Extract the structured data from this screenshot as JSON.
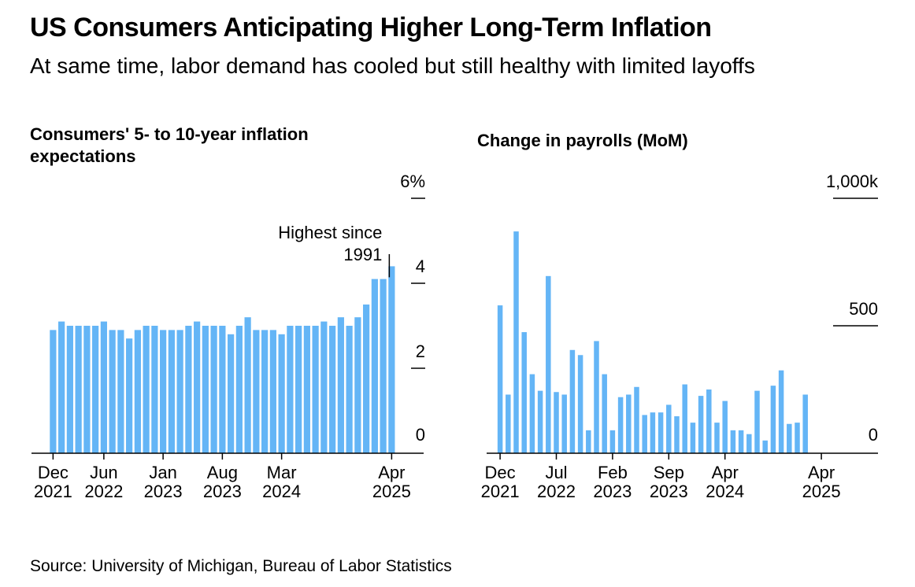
{
  "title": "US Consumers Anticipating Higher Long-Term Inflation",
  "subtitle": "At same time, labor demand has cooled but still healthy with limited layoffs",
  "source": "Source: University of Michigan, Bureau of Labor Statistics",
  "colors": {
    "bar": "#64b5f6",
    "axis": "#000000"
  },
  "chart_data": [
    {
      "type": "bar",
      "title": "Consumers' 5- to 10-year inflation expectations",
      "title_lines": [
        "Consumers' 5- to 10-year inflation",
        "expectations"
      ],
      "y_ticks": [
        "6%",
        "4",
        "2",
        "0"
      ],
      "y_tick_values": [
        6,
        4,
        2,
        0
      ],
      "ylim": [
        0,
        6
      ],
      "x_ticks": [
        {
          "index": 0,
          "month": "Dec",
          "year": "2021"
        },
        {
          "index": 6,
          "month": "Jun",
          "year": "2022"
        },
        {
          "index": 13,
          "month": "Jan",
          "year": "2023"
        },
        {
          "index": 20,
          "month": "Aug",
          "year": "2023"
        },
        {
          "index": 27,
          "month": "Mar",
          "year": "2024"
        },
        {
          "index": 40,
          "month": "Apr",
          "year": "2025"
        }
      ],
      "annotation": {
        "lines": [
          "Highest since",
          "1991"
        ],
        "index": 40
      },
      "x": [
        "Dec 2021",
        "Jan 2022",
        "Feb 2022",
        "Mar 2022",
        "Apr 2022",
        "May 2022",
        "Jun 2022",
        "Jul 2022",
        "Aug 2022",
        "Sep 2022",
        "Oct 2022",
        "Nov 2022",
        "Dec 2022",
        "Jan 2023",
        "Feb 2023",
        "Mar 2023",
        "Apr 2023",
        "May 2023",
        "Jun 2023",
        "Jul 2023",
        "Aug 2023",
        "Sep 2023",
        "Oct 2023",
        "Nov 2023",
        "Dec 2023",
        "Jan 2024",
        "Feb 2024",
        "Mar 2024",
        "Apr 2024",
        "May 2024",
        "Jun 2024",
        "Jul 2024",
        "Aug 2024",
        "Sep 2024",
        "Oct 2024",
        "Nov 2024",
        "Dec 2024",
        "Jan 2025",
        "Feb 2025",
        "Mar 2025",
        "Apr 2025"
      ],
      "values": [
        2.9,
        3.1,
        3.0,
        3.0,
        3.0,
        3.0,
        3.1,
        2.9,
        2.9,
        2.7,
        2.9,
        3.0,
        3.0,
        2.9,
        2.9,
        2.9,
        3.0,
        3.1,
        3.0,
        3.0,
        3.0,
        2.8,
        3.0,
        3.2,
        2.9,
        2.9,
        2.9,
        2.8,
        3.0,
        3.0,
        3.0,
        3.0,
        3.1,
        3.0,
        3.2,
        3.0,
        3.2,
        3.5,
        4.1,
        4.1,
        4.4
      ]
    },
    {
      "type": "bar",
      "title": "Change in payrolls (MoM)",
      "y_ticks": [
        "1,000k",
        "500",
        "0"
      ],
      "y_tick_values": [
        1000,
        500,
        0
      ],
      "ylim": [
        0,
        1000
      ],
      "x_ticks": [
        {
          "index": 0,
          "month": "Dec",
          "year": "2021"
        },
        {
          "index": 7,
          "month": "Jul",
          "year": "2022"
        },
        {
          "index": 14,
          "month": "Feb",
          "year": "2023"
        },
        {
          "index": 21,
          "month": "Sep",
          "year": "2023"
        },
        {
          "index": 28,
          "month": "Apr",
          "year": "2024"
        },
        {
          "index": 40,
          "month": "Apr",
          "year": "2025"
        }
      ],
      "x": [
        "Dec 2021",
        "Jan 2022",
        "Feb 2022",
        "Mar 2022",
        "Apr 2022",
        "May 2022",
        "Jun 2022",
        "Jul 2022",
        "Aug 2022",
        "Sep 2022",
        "Oct 2022",
        "Nov 2022",
        "Dec 2022",
        "Jan 2023",
        "Feb 2023",
        "Mar 2023",
        "Apr 2023",
        "May 2023",
        "Jun 2023",
        "Jul 2023",
        "Aug 2023",
        "Sep 2023",
        "Oct 2023",
        "Nov 2023",
        "Dec 2023",
        "Jan 2024",
        "Feb 2024",
        "Mar 2024",
        "Apr 2024",
        "May 2024",
        "Jun 2024",
        "Jul 2024",
        "Aug 2024",
        "Sep 2024",
        "Oct 2024",
        "Nov 2024",
        "Dec 2024",
        "Jan 2025",
        "Feb 2025",
        "Mar 2025"
      ],
      "values": [
        580,
        230,
        870,
        475,
        310,
        245,
        695,
        240,
        230,
        405,
        385,
        90,
        440,
        310,
        90,
        220,
        230,
        260,
        150,
        160,
        160,
        190,
        145,
        270,
        120,
        225,
        250,
        120,
        205,
        90,
        90,
        75,
        245,
        50,
        265,
        325,
        115,
        120,
        230,
        0
      ]
    }
  ]
}
